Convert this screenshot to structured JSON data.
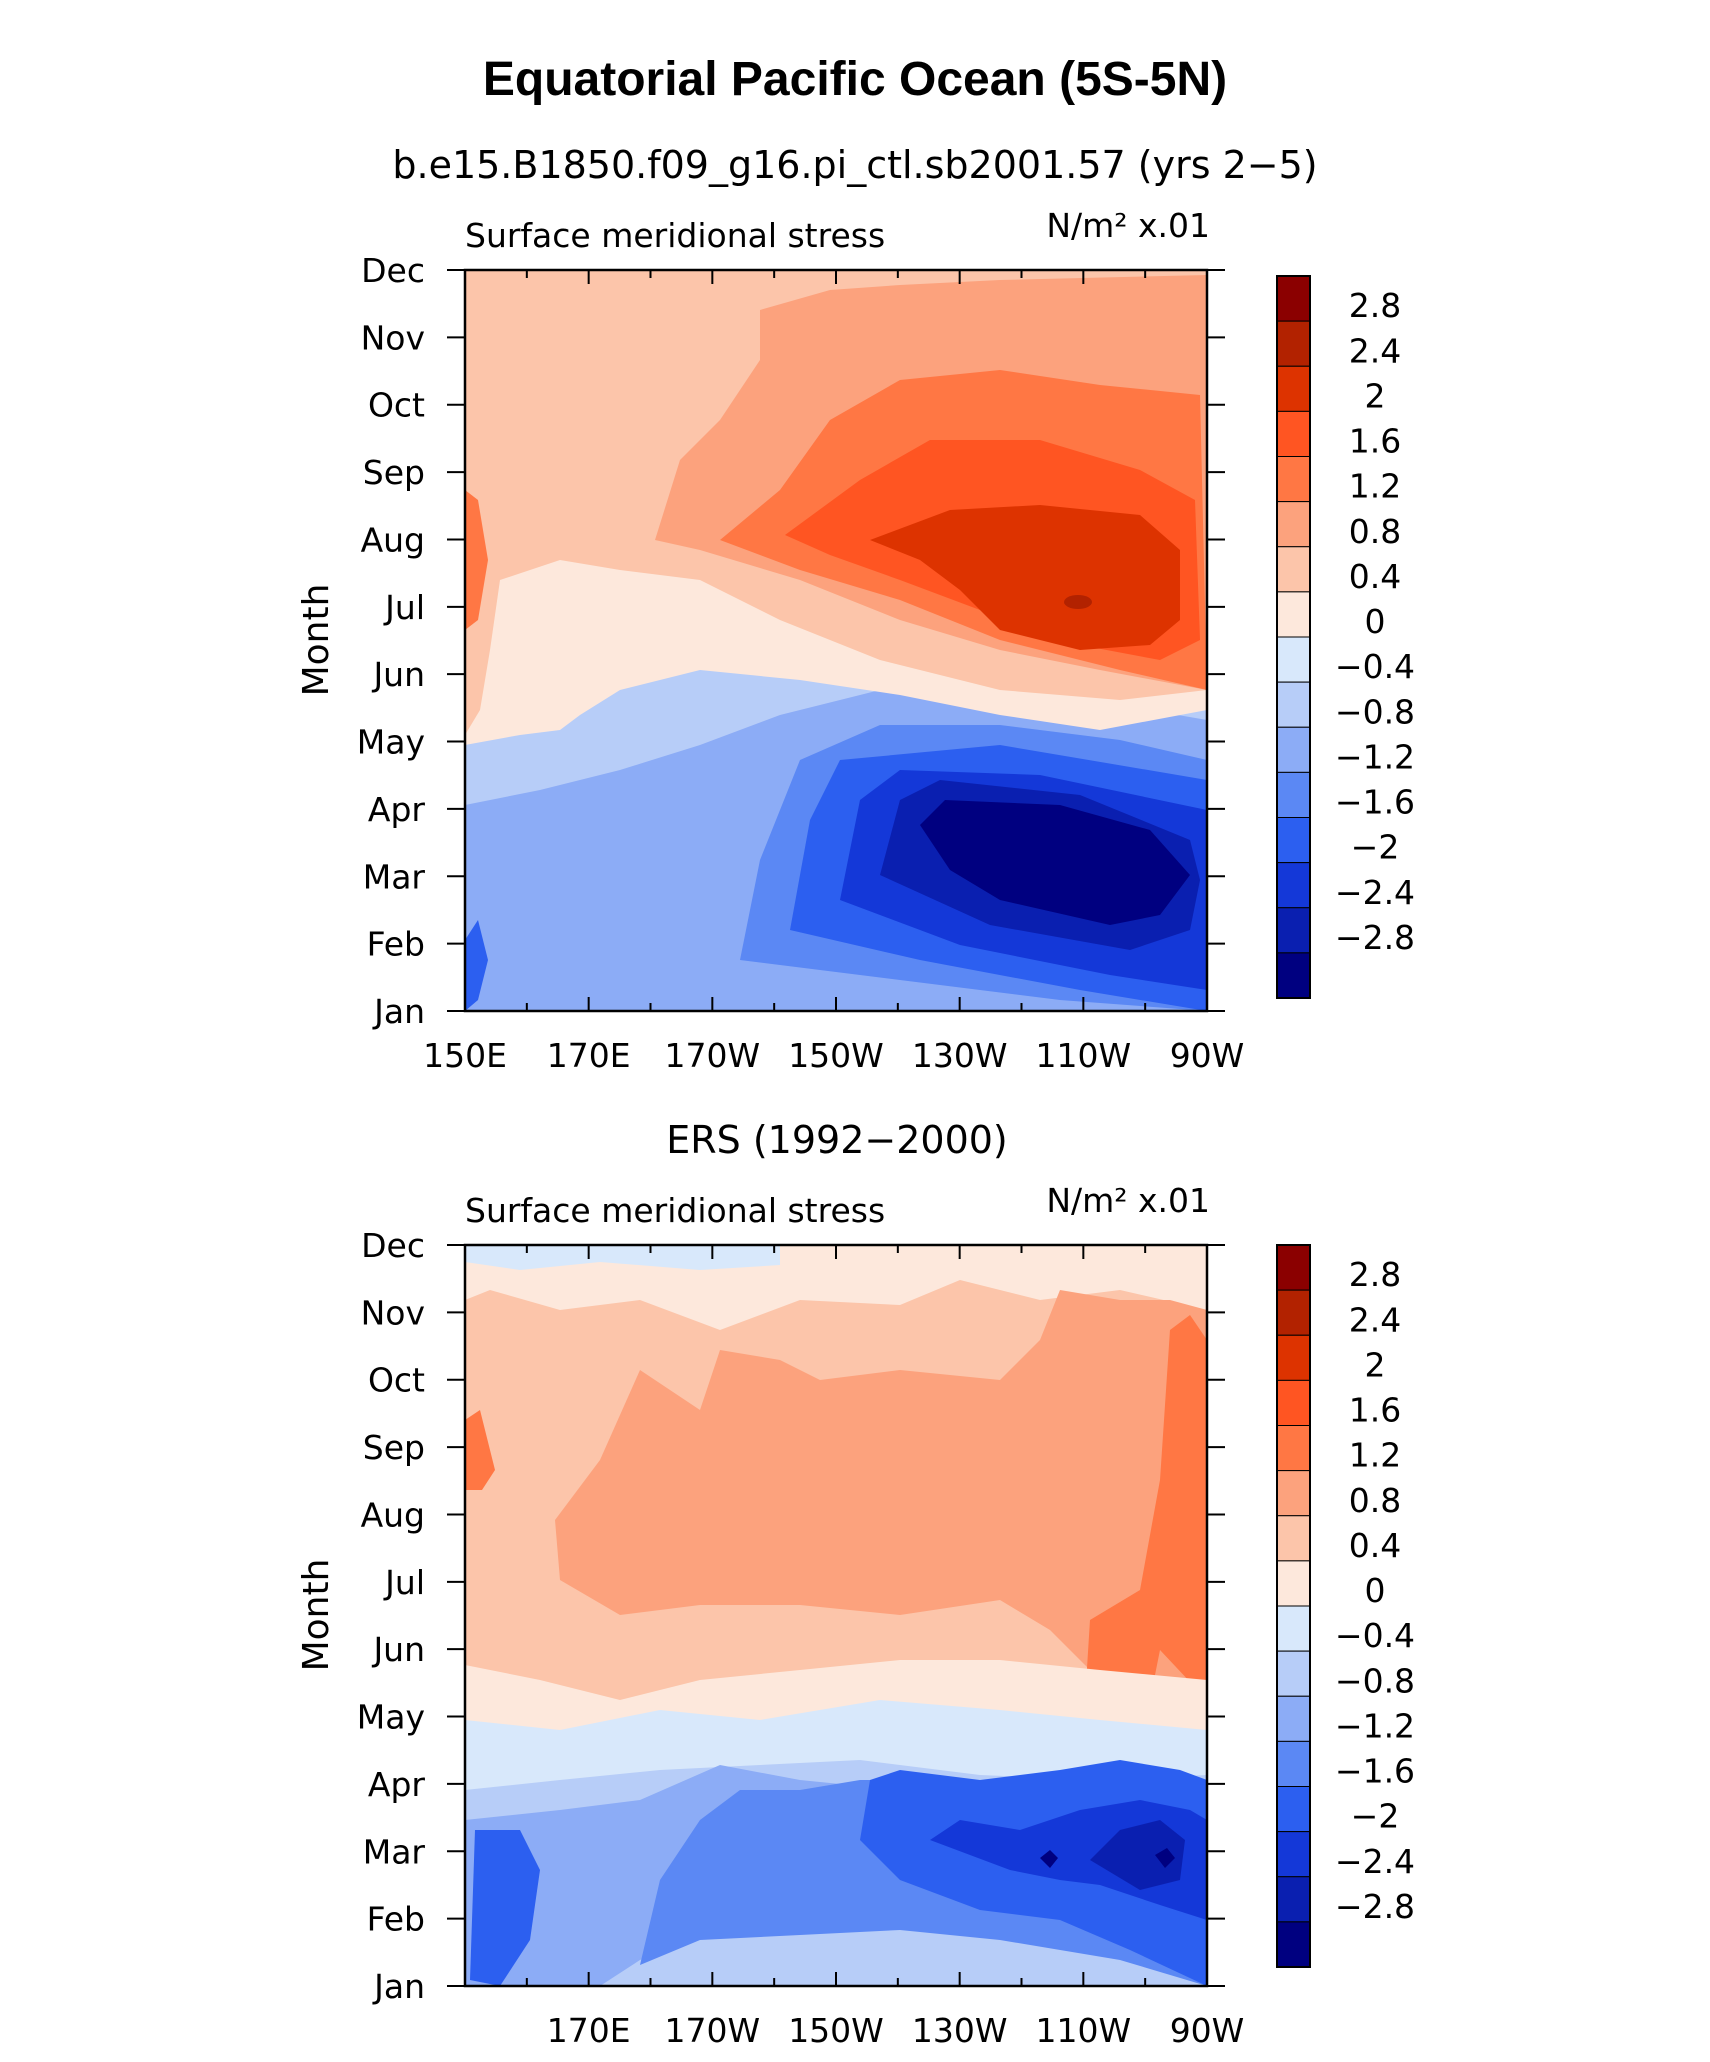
{
  "title": "Equatorial Pacific Ocean (5S-5N)",
  "chart_data": [
    {
      "type": "heatmap",
      "title": "b.e15.B1850.f09_g16.pi_ctl.sb2001.57 (yrs 2−5)",
      "subtitle": "Surface meridional stress",
      "units": "N/m² x.01",
      "xlabel": "",
      "ylabel": "Month",
      "x_tick_labels": [
        "150E",
        "170E",
        "170W",
        "150W",
        "130W",
        "110W",
        "90W"
      ],
      "y_tick_labels": [
        "Jan",
        "Feb",
        "Mar",
        "Apr",
        "May",
        "Jun",
        "Jul",
        "Aug",
        "Sep",
        "Oct",
        "Nov",
        "Dec"
      ],
      "xlim": [
        "150E",
        "90W"
      ],
      "colorbar_levels": [
        "2.8",
        "2.4",
        "2",
        "1.6",
        "1.2",
        "0.8",
        "0.4",
        "0",
        "−0.4",
        "−0.8",
        "−1.2",
        "−1.6",
        "−2",
        "−2.4",
        "−2.8"
      ],
      "features": [
        {
          "label": "positive maximum",
          "lon": "110W",
          "month": "Jul",
          "value": 2.6
        },
        {
          "label": "negative minimum",
          "lon": "120W",
          "month": "Mar",
          "value": -3.0
        }
      ]
    },
    {
      "type": "heatmap",
      "title": "ERS (1992−2000)",
      "subtitle": "Surface meridional stress",
      "units": "N/m² x.01",
      "xlabel": "",
      "ylabel": "Month",
      "x_tick_labels": [
        "170E",
        "170W",
        "150W",
        "130W",
        "110W",
        "90W"
      ],
      "y_tick_labels": [
        "Jan",
        "Feb",
        "Mar",
        "Apr",
        "May",
        "Jun",
        "Jul",
        "Aug",
        "Sep",
        "Oct",
        "Nov",
        "Dec"
      ],
      "xlim": [
        "150E",
        "90W"
      ],
      "colorbar_levels": [
        "2.8",
        "2.4",
        "2",
        "1.6",
        "1.2",
        "0.8",
        "0.4",
        "0",
        "−0.4",
        "−0.8",
        "−1.2",
        "−1.6",
        "−2",
        "−2.4",
        "−2.8"
      ],
      "features": [
        {
          "label": "positive maximum",
          "lon": "95W",
          "month": "Jul",
          "value": 1.4
        },
        {
          "label": "negative minimum",
          "lon": "95W",
          "month": "Mar",
          "value": -2.5
        }
      ]
    }
  ],
  "colors": {
    "palette": [
      "#8b0000",
      "#b22200",
      "#dd3300",
      "#ff5522",
      "#ff7744",
      "#fca27d",
      "#fcc5aa",
      "#fde8dc",
      "#d8e8fb",
      "#b7cdf8",
      "#8cacf6",
      "#5b88f4",
      "#2c5ff0",
      "#1438d8",
      "#0a1fb0",
      "#000080"
    ]
  }
}
